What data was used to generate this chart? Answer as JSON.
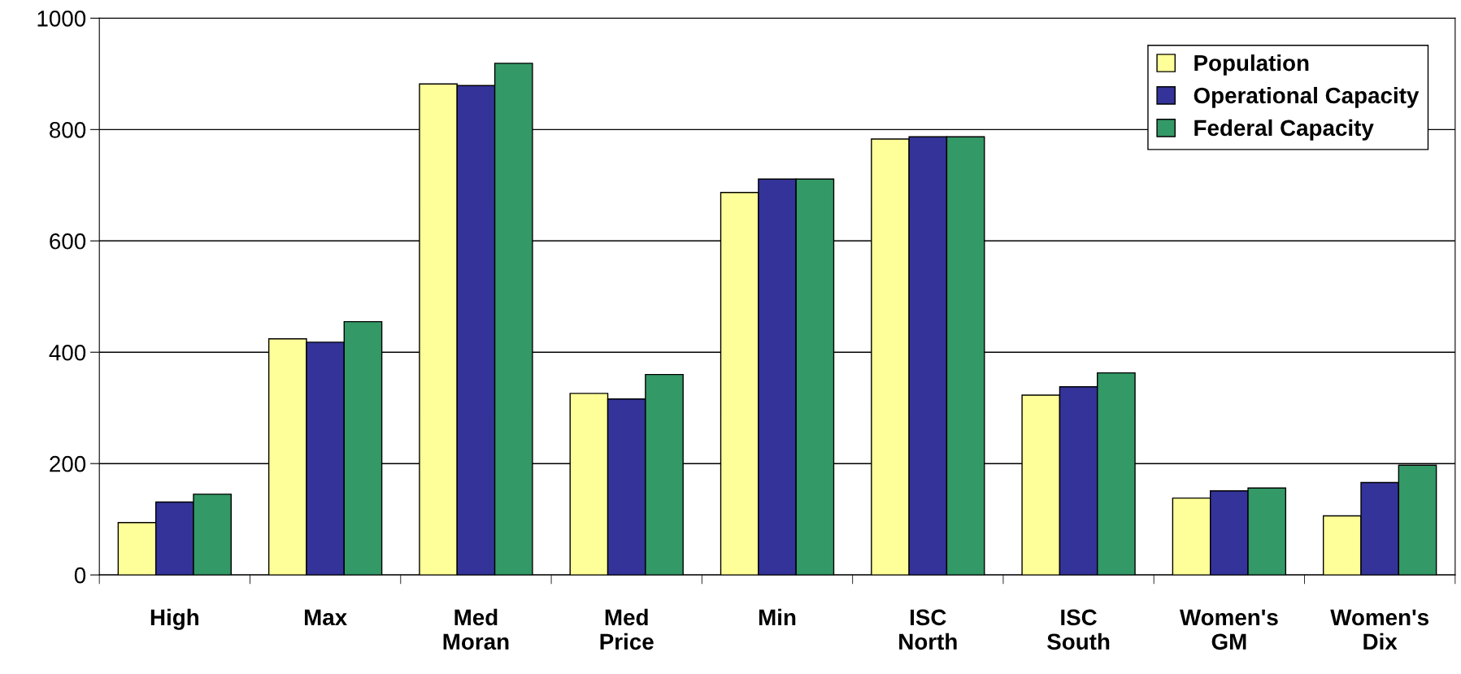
{
  "chart_data": {
    "type": "bar",
    "categories": [
      "High",
      "Max",
      "Med\nMoran",
      "Med\nPrice",
      "Min",
      "ISC\nNorth",
      "ISC\nSouth",
      "Women's\nGM",
      "Women's\nDix"
    ],
    "series": [
      {
        "name": "Population",
        "color": "#ffff99",
        "values": [
          94,
          424,
          882,
          326,
          687,
          783,
          323,
          138,
          106
        ]
      },
      {
        "name": "Operational Capacity",
        "color": "#333399",
        "values": [
          131,
          418,
          879,
          316,
          711,
          787,
          338,
          151,
          166
        ]
      },
      {
        "name": "Federal Capacity",
        "color": "#339966",
        "values": [
          145,
          455,
          919,
          360,
          711,
          787,
          363,
          156,
          197
        ]
      }
    ],
    "ylim": [
      0,
      1000
    ],
    "yticks": [
      0,
      200,
      400,
      600,
      800,
      1000
    ],
    "grid": "y",
    "legend": "top right"
  }
}
